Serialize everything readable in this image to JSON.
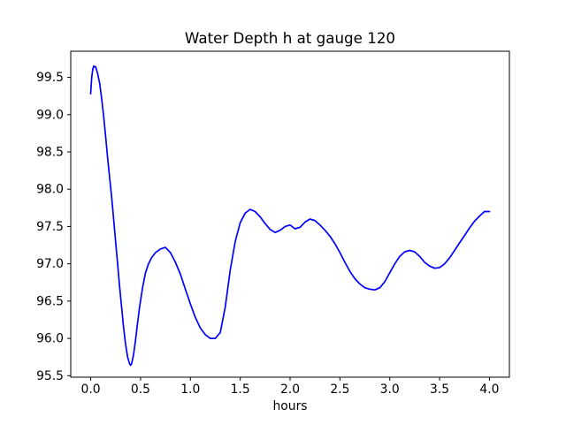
{
  "figure": {
    "background_color": "#ffffff",
    "text_color": "#000000"
  },
  "chart_data": {
    "type": "line",
    "title": "Water Depth h at gauge 120",
    "xlabel": "hours",
    "ylabel": "",
    "grid": false,
    "legend": null,
    "xlim": [
      -0.2,
      4.2
    ],
    "ylim": [
      95.48,
      99.85
    ],
    "xticks": [
      0.0,
      0.5,
      1.0,
      1.5,
      2.0,
      2.5,
      3.0,
      3.5,
      4.0
    ],
    "yticks": [
      95.5,
      96.0,
      96.5,
      97.0,
      97.5,
      98.0,
      98.5,
      99.0,
      99.5
    ],
    "line_color": "#0000ff",
    "line_width": 1.7,
    "axis_color": "#000000",
    "series": [
      {
        "name": "water-depth-h-gauge-120",
        "x": [
          0.0,
          0.01,
          0.02,
          0.03,
          0.05,
          0.07,
          0.09,
          0.11,
          0.13,
          0.15,
          0.17,
          0.19,
          0.21,
          0.23,
          0.25,
          0.27,
          0.29,
          0.31,
          0.33,
          0.35,
          0.37,
          0.39,
          0.4,
          0.41,
          0.43,
          0.45,
          0.47,
          0.49,
          0.52,
          0.55,
          0.58,
          0.61,
          0.65,
          0.7,
          0.75,
          0.8,
          0.85,
          0.9,
          0.95,
          1.0,
          1.05,
          1.1,
          1.15,
          1.2,
          1.25,
          1.3,
          1.35,
          1.4,
          1.45,
          1.5,
          1.55,
          1.6,
          1.65,
          1.7,
          1.75,
          1.8,
          1.85,
          1.9,
          1.95,
          2.0,
          2.05,
          2.1,
          2.15,
          2.2,
          2.25,
          2.3,
          2.35,
          2.4,
          2.45,
          2.5,
          2.55,
          2.6,
          2.65,
          2.7,
          2.75,
          2.8,
          2.85,
          2.9,
          2.95,
          3.0,
          3.05,
          3.1,
          3.15,
          3.2,
          3.25,
          3.3,
          3.35,
          3.4,
          3.45,
          3.5,
          3.55,
          3.6,
          3.65,
          3.7,
          3.75,
          3.8,
          3.85,
          3.9,
          3.95,
          4.0
        ],
        "y": [
          99.28,
          99.5,
          99.6,
          99.65,
          99.64,
          99.55,
          99.42,
          99.22,
          98.98,
          98.7,
          98.42,
          98.15,
          97.9,
          97.6,
          97.3,
          97.0,
          96.7,
          96.42,
          96.15,
          95.92,
          95.75,
          95.66,
          95.64,
          95.66,
          95.78,
          95.98,
          96.2,
          96.42,
          96.68,
          96.88,
          97.0,
          97.08,
          97.15,
          97.2,
          97.22,
          97.15,
          97.02,
          96.86,
          96.66,
          96.46,
          96.28,
          96.14,
          96.05,
          96.0,
          96.0,
          96.08,
          96.42,
          96.92,
          97.3,
          97.55,
          97.68,
          97.73,
          97.7,
          97.63,
          97.54,
          97.46,
          97.42,
          97.45,
          97.5,
          97.52,
          97.47,
          97.49,
          97.56,
          97.6,
          97.58,
          97.52,
          97.45,
          97.37,
          97.27,
          97.15,
          97.02,
          96.9,
          96.8,
          96.73,
          96.68,
          96.66,
          96.65,
          96.68,
          96.76,
          96.88,
          97.0,
          97.1,
          97.16,
          97.18,
          97.16,
          97.1,
          97.02,
          96.97,
          96.94,
          96.95,
          97.0,
          97.08,
          97.18,
          97.28,
          97.38,
          97.48,
          97.57,
          97.64,
          97.7,
          97.7
        ]
      }
    ]
  }
}
